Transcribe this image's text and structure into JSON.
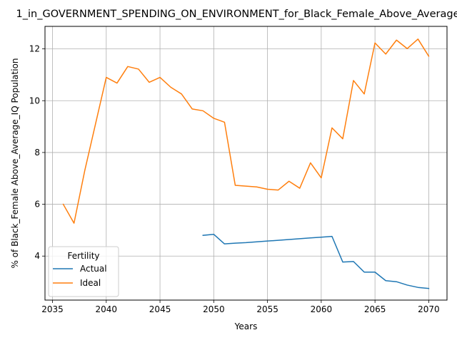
{
  "chart_data": {
    "type": "line",
    "title": "1_in_GOVERNMENT_SPENDING_ON_ENVIRONMENT_for_Black_Female_Above_Average_IQ",
    "xlabel": "Years",
    "ylabel": "% of Black_Female Above_Average_IQ Population",
    "xlim": [
      2034.3,
      2071.7
    ],
    "ylim": [
      2.3,
      12.87
    ],
    "xticks": [
      2035,
      2040,
      2045,
      2050,
      2055,
      2060,
      2065,
      2070
    ],
    "yticks": [
      4,
      6,
      8,
      10,
      12
    ],
    "grid": true,
    "legend": {
      "title": "Fertility",
      "placement": "lower-left"
    },
    "colors": {
      "Actual": "#1f77b4",
      "Ideal": "#ff7f0e"
    },
    "series": [
      {
        "name": "Actual",
        "x": [
          2049,
          2050,
          2051,
          2052,
          2053,
          2054,
          2055,
          2056,
          2057,
          2058,
          2059,
          2060,
          2061,
          2062,
          2063,
          2064,
          2065,
          2066,
          2067,
          2068,
          2069,
          2070
        ],
        "y": [
          4.8,
          4.84,
          4.47,
          4.5,
          4.52,
          4.55,
          4.58,
          4.61,
          4.64,
          4.67,
          4.7,
          4.73,
          4.76,
          3.77,
          3.79,
          3.38,
          3.38,
          3.05,
          3.01,
          2.88,
          2.79,
          2.75
        ]
      },
      {
        "name": "Ideal",
        "x": [
          2036,
          2037,
          2038,
          2039,
          2040,
          2041,
          2042,
          2043,
          2044,
          2045,
          2046,
          2047,
          2048,
          2049,
          2050,
          2051,
          2052,
          2053,
          2054,
          2055,
          2056,
          2057,
          2058,
          2059,
          2060,
          2061,
          2062,
          2063,
          2064,
          2065,
          2066,
          2067,
          2068,
          2069,
          2070
        ],
        "y": [
          6.0,
          5.27,
          7.3,
          9.1,
          10.9,
          10.68,
          11.32,
          11.22,
          10.71,
          10.9,
          10.52,
          10.26,
          9.68,
          9.61,
          9.32,
          9.17,
          6.73,
          6.7,
          6.67,
          6.58,
          6.55,
          6.89,
          6.62,
          7.6,
          7.02,
          8.95,
          8.53,
          10.78,
          10.26,
          12.23,
          11.8,
          12.34,
          12.01,
          12.38,
          11.72
        ]
      }
    ]
  }
}
